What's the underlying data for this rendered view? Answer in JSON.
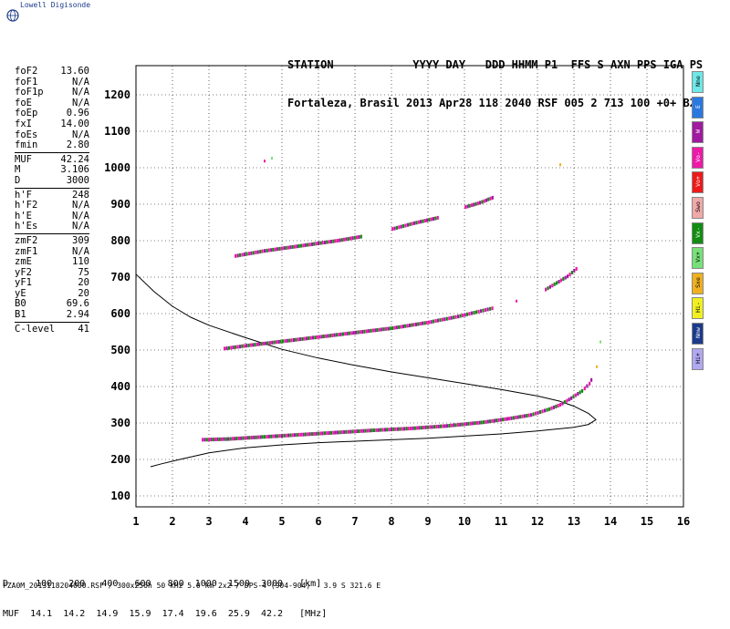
{
  "logo_text": "Lowell Digisonde",
  "header": {
    "line1": "STATION            YYYY DAY   DDD HHMM P1  FFS S AXN PPS IGA PS",
    "line2": "Fortaleza, Brasil 2013 Apr28 118 2040 RSF 005 2 713 100 +0+ B2"
  },
  "params": [
    {
      "k": "foF2",
      "v": "13.60"
    },
    {
      "k": "foF1",
      "v": "N/A"
    },
    {
      "k": "foF1p",
      "v": "N/A"
    },
    {
      "k": "foE",
      "v": "N/A"
    },
    {
      "k": "foEp",
      "v": "0.96"
    },
    {
      "k": "fxI",
      "v": "14.00"
    },
    {
      "k": "foEs",
      "v": "N/A"
    },
    {
      "k": "fmin",
      "v": "2.80"
    },
    {
      "sep": true
    },
    {
      "k": "MUF",
      "v": "42.24"
    },
    {
      "k": "M",
      "v": "3.106"
    },
    {
      "k": "D",
      "v": "3000"
    },
    {
      "sep": true
    },
    {
      "k": "h'F",
      "v": "248"
    },
    {
      "k": "h'F2",
      "v": "N/A"
    },
    {
      "k": "h'E",
      "v": "N/A"
    },
    {
      "k": "h'Es",
      "v": "N/A"
    },
    {
      "sep": true
    },
    {
      "k": "zmF2",
      "v": "309"
    },
    {
      "k": "zmF1",
      "v": "N/A"
    },
    {
      "k": "zmE",
      "v": "110"
    },
    {
      "k": "yF2",
      "v": "75"
    },
    {
      "k": "yF1",
      "v": "20"
    },
    {
      "k": "yE",
      "v": "20"
    },
    {
      "k": "B0",
      "v": "69.6"
    },
    {
      "k": "B1",
      "v": "2.94"
    },
    {
      "sep": true
    },
    {
      "k": "C-level",
      "v": "41"
    }
  ],
  "legend": [
    {
      "label": "Nne",
      "color": "#6ee8e8"
    },
    {
      "label": "E",
      "color": "#2a78e0"
    },
    {
      "label": "W",
      "color": "#a01aa0"
    },
    {
      "label": "Vo-",
      "color": "#ee1aa8"
    },
    {
      "label": "Vo+",
      "color": "#ee1a1a"
    },
    {
      "label": "Swo",
      "color": "#f0a8a8"
    },
    {
      "label": "Vx-",
      "color": "#128c12"
    },
    {
      "label": "Vx+",
      "color": "#78e078"
    },
    {
      "label": "Sxe",
      "color": "#f0b020"
    },
    {
      "label": "Hi-",
      "color": "#f0f020"
    },
    {
      "label": "Nnw",
      "color": "#1a3a8a"
    },
    {
      "label": "Hi+",
      "color": "#b0a8f0"
    }
  ],
  "muf_table": {
    "line1": "D     100   200   400   600   800  1000  1500  3000   [km]",
    "line2": "MUF  14.1  14.2  14.9  15.9  17.4  19.6  25.9  42.2   [MHz]"
  },
  "footer": "FZA0M_2013118204000.RSF / 300x256h 50 kHz 5.0 km 2x2 / DPS-4 (904-904)   3.9 S 321.6 E",
  "chart_data": {
    "type": "scatter",
    "xlim": [
      1,
      16
    ],
    "ylim": [
      70,
      1280
    ],
    "x_ticks": [
      1,
      2,
      3,
      4,
      5,
      6,
      7,
      8,
      9,
      10,
      11,
      12,
      13,
      14,
      15,
      16
    ],
    "y_ticks": [
      100,
      200,
      300,
      400,
      500,
      600,
      700,
      800,
      900,
      1000,
      1100,
      1200
    ],
    "grid": true,
    "echo_traces": [
      {
        "name": "F-trace 1-hop",
        "points": [
          [
            2.8,
            254
          ],
          [
            3.5,
            256
          ],
          [
            4.5,
            262
          ],
          [
            5.5,
            268
          ],
          [
            6.5,
            274
          ],
          [
            7.5,
            280
          ],
          [
            8.5,
            285
          ],
          [
            9.5,
            292
          ],
          [
            10.5,
            302
          ],
          [
            11.2,
            312
          ],
          [
            11.8,
            322
          ],
          [
            12.3,
            338
          ],
          [
            12.6,
            350
          ],
          [
            12.9,
            368
          ],
          [
            13.2,
            388
          ],
          [
            13.4,
            408
          ],
          [
            13.5,
            428
          ]
        ],
        "colors": [
          "#ee1aa8",
          "#a01aa0",
          "#128c12"
        ]
      },
      {
        "name": "F-trace 2-hop",
        "points": [
          [
            3.4,
            504
          ],
          [
            4,
            512
          ],
          [
            5,
            524
          ],
          [
            6,
            536
          ],
          [
            7,
            548
          ],
          [
            8,
            560
          ],
          [
            9,
            576
          ],
          [
            9.8,
            592
          ],
          [
            10.3,
            604
          ],
          [
            10.8,
            616
          ]
        ],
        "colors": [
          "#ee1aa8",
          "#a01aa0",
          "#128c12"
        ]
      },
      {
        "name": "F-trace 3-hop",
        "points": [
          [
            3.7,
            758
          ],
          [
            4.5,
            772
          ],
          [
            5.5,
            786
          ],
          [
            6.5,
            800
          ],
          [
            7.2,
            812
          ]
        ],
        "colors": [
          "#ee1aa8",
          "#a01aa0",
          "#128c12"
        ]
      },
      {
        "name": "F-trace 3-hop b",
        "points": [
          [
            8,
            832
          ],
          [
            8.6,
            848
          ],
          [
            9.3,
            864
          ]
        ],
        "colors": [
          "#ee1aa8",
          "#a01aa0",
          "#128c12"
        ]
      },
      {
        "name": "F-trace 4-hop",
        "points": [
          [
            10,
            892
          ],
          [
            10.4,
            904
          ],
          [
            10.8,
            920
          ]
        ],
        "colors": [
          "#ee1aa8",
          "#a01aa0",
          "#128c12"
        ]
      },
      {
        "name": "X-trace 2-hop",
        "points": [
          [
            12.2,
            666
          ],
          [
            12.5,
            684
          ],
          [
            12.8,
            702
          ],
          [
            13.1,
            728
          ]
        ],
        "colors": [
          "#ee1aa8",
          "#128c12",
          "#a01aa0"
        ]
      },
      {
        "name": "scatter",
        "points": [
          [
            4.5,
            1022
          ],
          [
            4.7,
            1030
          ],
          [
            12.6,
            1012
          ],
          [
            11.4,
            638
          ],
          [
            13.7,
            526
          ],
          [
            13.6,
            458
          ]
        ],
        "colors": [
          "#ee1aa8",
          "#78e078",
          "#f0b020"
        ]
      }
    ],
    "profile": [
      [
        1,
        708
      ],
      [
        1.5,
        660
      ],
      [
        2,
        620
      ],
      [
        2.5,
        590
      ],
      [
        3,
        568
      ],
      [
        4,
        534
      ],
      [
        5,
        502
      ],
      [
        6,
        478
      ],
      [
        7,
        458
      ],
      [
        8,
        440
      ],
      [
        9,
        424
      ],
      [
        10,
        408
      ],
      [
        11,
        392
      ],
      [
        12,
        374
      ],
      [
        12.6,
        360
      ],
      [
        13,
        346
      ],
      [
        13.4,
        326
      ],
      [
        13.6,
        309
      ],
      [
        13.4,
        296
      ],
      [
        13,
        288
      ],
      [
        12,
        278
      ],
      [
        11,
        270
      ],
      [
        10,
        264
      ],
      [
        9,
        258
      ],
      [
        8,
        254
      ],
      [
        7,
        250
      ],
      [
        6,
        246
      ],
      [
        5,
        240
      ],
      [
        4,
        232
      ],
      [
        3,
        218
      ],
      [
        2.2,
        200
      ],
      [
        1.7,
        188
      ],
      [
        1.4,
        180
      ]
    ]
  }
}
